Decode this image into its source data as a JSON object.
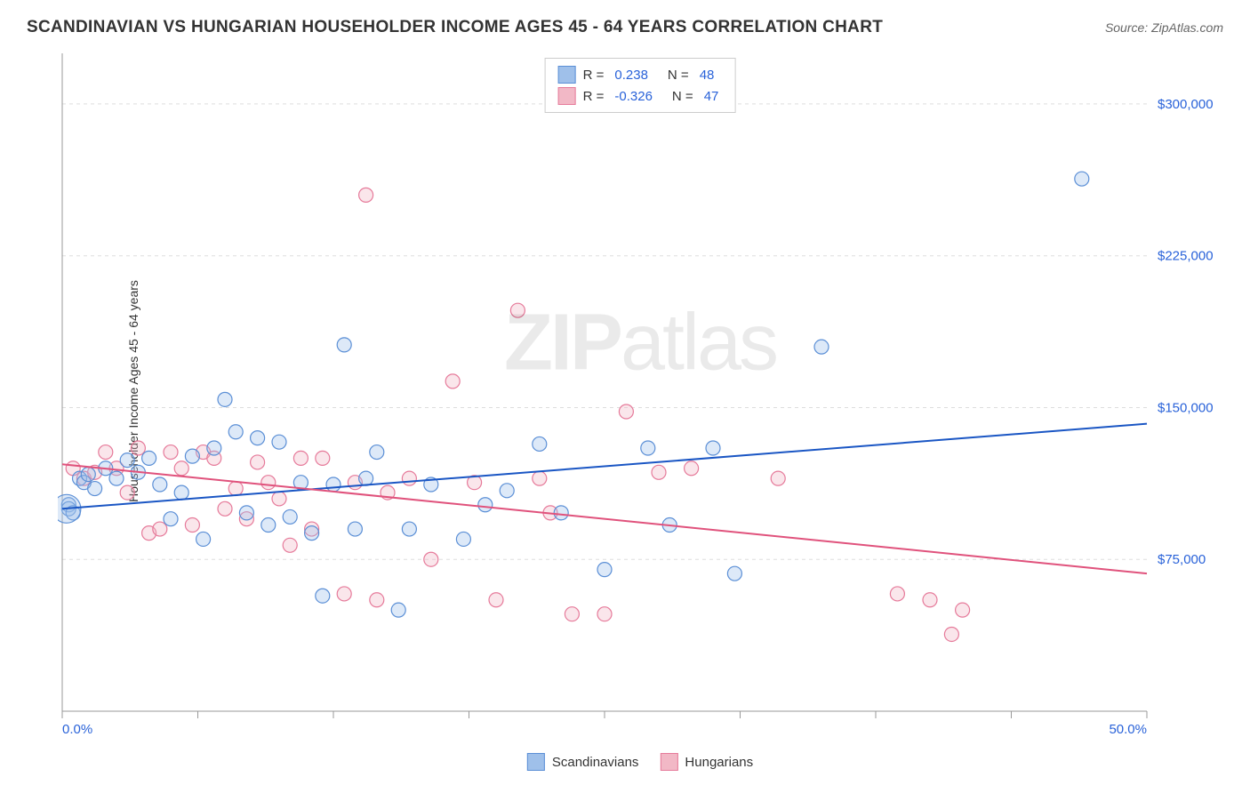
{
  "title": "SCANDINAVIAN VS HUNGARIAN HOUSEHOLDER INCOME AGES 45 - 64 YEARS CORRELATION CHART",
  "source_label": "Source: ZipAtlas.com",
  "y_axis_label": "Householder Income Ages 45 - 64 years",
  "watermark": {
    "bold": "ZIP",
    "light": "atlas"
  },
  "chart": {
    "type": "scatter",
    "background_color": "#ffffff",
    "grid_color": "#dddddd",
    "axis_color": "#999999",
    "xlim": [
      0,
      50
    ],
    "ylim": [
      0,
      325000
    ],
    "x_tick_positions": [
      0,
      6.25,
      12.5,
      18.75,
      25,
      31.25,
      37.5,
      43.75,
      50
    ],
    "x_tick_labels": {
      "0": "0.0%",
      "50": "50.0%"
    },
    "y_gridlines": [
      75000,
      150000,
      225000,
      300000
    ],
    "y_tick_labels": [
      "$75,000",
      "$150,000",
      "$225,000",
      "$300,000"
    ],
    "marker_radius": 8,
    "series": [
      {
        "name": "Scandinavians",
        "color_fill": "#9fc0ea",
        "color_stroke": "#5b8fd6",
        "r_value": "0.238",
        "n_value": "48",
        "trend": {
          "x1": 0,
          "y1": 100000,
          "x2": 50,
          "y2": 142000,
          "color": "#1a56c4",
          "width": 2
        },
        "points": [
          [
            0.3,
            102000
          ],
          [
            0.3,
            100000
          ],
          [
            0.5,
            98000
          ],
          [
            0.8,
            115000
          ],
          [
            1.0,
            113000
          ],
          [
            1.2,
            117000
          ],
          [
            1.5,
            110000
          ],
          [
            2.0,
            120000
          ],
          [
            2.5,
            115000
          ],
          [
            3.0,
            124000
          ],
          [
            3.5,
            118000
          ],
          [
            4.0,
            125000
          ],
          [
            4.5,
            112000
          ],
          [
            5.0,
            95000
          ],
          [
            5.5,
            108000
          ],
          [
            6.0,
            126000
          ],
          [
            6.5,
            85000
          ],
          [
            7.0,
            130000
          ],
          [
            7.5,
            154000
          ],
          [
            8.0,
            138000
          ],
          [
            8.5,
            98000
          ],
          [
            9.0,
            135000
          ],
          [
            9.5,
            92000
          ],
          [
            10.0,
            133000
          ],
          [
            10.5,
            96000
          ],
          [
            11.0,
            113000
          ],
          [
            11.5,
            88000
          ],
          [
            12.0,
            57000
          ],
          [
            12.5,
            112000
          ],
          [
            13.0,
            181000
          ],
          [
            13.5,
            90000
          ],
          [
            14.0,
            115000
          ],
          [
            14.5,
            128000
          ],
          [
            15.5,
            50000
          ],
          [
            16.0,
            90000
          ],
          [
            17.0,
            112000
          ],
          [
            18.5,
            85000
          ],
          [
            19.5,
            102000
          ],
          [
            20.5,
            109000
          ],
          [
            22.0,
            132000
          ],
          [
            23.0,
            98000
          ],
          [
            25.0,
            70000
          ],
          [
            27.0,
            130000
          ],
          [
            28.0,
            92000
          ],
          [
            30.0,
            130000
          ],
          [
            31.0,
            68000
          ],
          [
            35.0,
            180000
          ],
          [
            47.0,
            263000
          ]
        ]
      },
      {
        "name": "Hungarians",
        "color_fill": "#f2b8c6",
        "color_stroke": "#e67a9a",
        "r_value": "-0.326",
        "n_value": "47",
        "trend": {
          "x1": 0,
          "y1": 122000,
          "x2": 50,
          "y2": 68000,
          "color": "#e0527c",
          "width": 2
        },
        "points": [
          [
            0.5,
            120000
          ],
          [
            1.0,
            115000
          ],
          [
            1.5,
            118000
          ],
          [
            2.0,
            128000
          ],
          [
            2.5,
            120000
          ],
          [
            3.0,
            108000
          ],
          [
            3.5,
            130000
          ],
          [
            4.0,
            88000
          ],
          [
            4.5,
            90000
          ],
          [
            5.0,
            128000
          ],
          [
            5.5,
            120000
          ],
          [
            6.0,
            92000
          ],
          [
            6.5,
            128000
          ],
          [
            7.0,
            125000
          ],
          [
            7.5,
            100000
          ],
          [
            8.0,
            110000
          ],
          [
            8.5,
            95000
          ],
          [
            9.0,
            123000
          ],
          [
            9.5,
            113000
          ],
          [
            10.0,
            105000
          ],
          [
            10.5,
            82000
          ],
          [
            11.0,
            125000
          ],
          [
            11.5,
            90000
          ],
          [
            12.0,
            125000
          ],
          [
            13.0,
            58000
          ],
          [
            13.5,
            113000
          ],
          [
            14.0,
            255000
          ],
          [
            14.5,
            55000
          ],
          [
            15.0,
            108000
          ],
          [
            16.0,
            115000
          ],
          [
            17.0,
            75000
          ],
          [
            18.0,
            163000
          ],
          [
            19.0,
            113000
          ],
          [
            20.0,
            55000
          ],
          [
            21.0,
            198000
          ],
          [
            22.0,
            115000
          ],
          [
            22.5,
            98000
          ],
          [
            23.5,
            48000
          ],
          [
            25.0,
            48000
          ],
          [
            26.0,
            148000
          ],
          [
            27.5,
            118000
          ],
          [
            29.0,
            120000
          ],
          [
            33.0,
            115000
          ],
          [
            38.5,
            58000
          ],
          [
            40.0,
            55000
          ],
          [
            41.0,
            38000
          ],
          [
            41.5,
            50000
          ]
        ]
      }
    ],
    "legend_top_label_r": "R =",
    "legend_top_label_n": "N ="
  }
}
